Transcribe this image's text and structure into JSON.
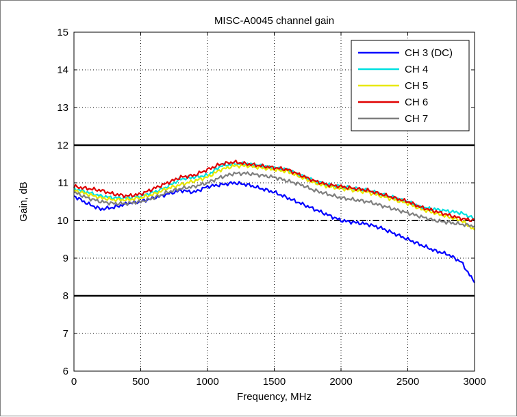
{
  "chart_data": {
    "type": "line",
    "title": "MISC-A0045 channel gain",
    "xlabel": "Frequency, MHz",
    "ylabel": "Gain, dB",
    "xlim": [
      0,
      3000
    ],
    "ylim": [
      6,
      15
    ],
    "xticks": [
      0,
      500,
      1000,
      1500,
      2000,
      2500,
      3000
    ],
    "yticks": [
      6,
      7,
      8,
      9,
      10,
      11,
      12,
      13,
      14,
      15
    ],
    "grid": true,
    "legend_position": "top-right",
    "reference_lines": [
      {
        "y": 12,
        "style": "solid",
        "color": "#000000"
      },
      {
        "y": 10,
        "style": "dash-dot",
        "color": "#000000"
      },
      {
        "y": 8,
        "style": "solid",
        "color": "#000000"
      }
    ],
    "x": [
      0,
      100,
      200,
      300,
      400,
      500,
      600,
      700,
      800,
      900,
      1000,
      1100,
      1200,
      1300,
      1400,
      1500,
      1600,
      1700,
      1800,
      1900,
      2000,
      2100,
      2200,
      2300,
      2400,
      2500,
      2600,
      2700,
      2800,
      2900,
      3000
    ],
    "series": [
      {
        "name": "CH 3 (DC)",
        "color": "#0000ff",
        "values": [
          10.65,
          10.45,
          10.3,
          10.35,
          10.45,
          10.5,
          10.6,
          10.7,
          10.8,
          10.75,
          10.9,
          10.95,
          11.0,
          10.95,
          10.85,
          10.75,
          10.6,
          10.45,
          10.3,
          10.15,
          10.0,
          9.95,
          9.9,
          9.8,
          9.65,
          9.5,
          9.35,
          9.2,
          9.1,
          8.9,
          8.35
        ]
      },
      {
        "name": "CH 4",
        "color": "#00e0e0",
        "values": [
          10.85,
          10.75,
          10.65,
          10.6,
          10.6,
          10.65,
          10.75,
          10.9,
          11.1,
          11.15,
          11.2,
          11.45,
          11.5,
          11.5,
          11.45,
          11.4,
          11.35,
          11.2,
          11.05,
          10.95,
          10.9,
          10.85,
          10.8,
          10.7,
          10.6,
          10.5,
          10.35,
          10.3,
          10.25,
          10.2,
          10.05
        ]
      },
      {
        "name": "CH 5",
        "color": "#e8e800",
        "values": [
          10.8,
          10.7,
          10.6,
          10.55,
          10.55,
          10.6,
          10.7,
          10.85,
          10.95,
          11.05,
          11.15,
          11.35,
          11.45,
          11.45,
          11.4,
          11.35,
          11.3,
          11.15,
          11.0,
          10.9,
          10.85,
          10.8,
          10.75,
          10.65,
          10.55,
          10.45,
          10.3,
          10.2,
          10.1,
          10.0,
          9.75
        ]
      },
      {
        "name": "CH 6",
        "color": "#e00000",
        "values": [
          10.9,
          10.85,
          10.8,
          10.7,
          10.65,
          10.7,
          10.85,
          11.0,
          11.15,
          11.2,
          11.35,
          11.5,
          11.55,
          11.5,
          11.45,
          11.4,
          11.35,
          11.2,
          11.05,
          10.95,
          10.9,
          10.85,
          10.8,
          10.7,
          10.6,
          10.5,
          10.35,
          10.25,
          10.15,
          10.05,
          10.0
        ]
      },
      {
        "name": "CH 7",
        "color": "#7f7f7f",
        "values": [
          10.75,
          10.6,
          10.5,
          10.45,
          10.45,
          10.5,
          10.6,
          10.75,
          10.85,
          10.9,
          11.0,
          11.15,
          11.25,
          11.25,
          11.2,
          11.15,
          11.05,
          10.95,
          10.8,
          10.7,
          10.6,
          10.55,
          10.5,
          10.4,
          10.3,
          10.2,
          10.1,
          10.0,
          9.95,
          9.9,
          9.85
        ]
      }
    ]
  }
}
